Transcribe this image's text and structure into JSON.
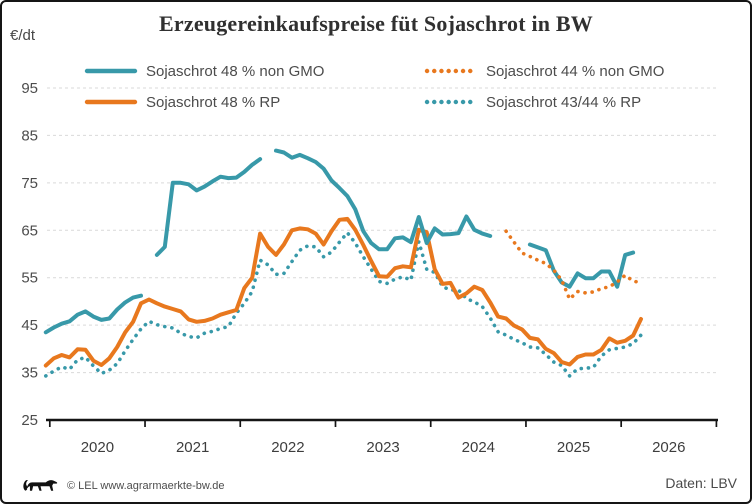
{
  "footer": {
    "copyright": "© LEL www.agrarmaerkte-bw.de",
    "source": "Daten: LBV"
  },
  "chart_data": {
    "type": "line",
    "title": "Erzeugereinkaufspreise füt Sojaschrot in BW",
    "ylabel": "€/dt",
    "xlabel": "",
    "ylim": [
      25,
      97
    ],
    "xlim": [
      2019.9,
      2027
    ],
    "grid": "horizontal-dashed",
    "legend_position": "top",
    "y_ticks": [
      95,
      85,
      75,
      65,
      55,
      45,
      35,
      25
    ],
    "x_tick_years": [
      2020,
      2021,
      2022,
      2023,
      2024,
      2025,
      2026,
      2027
    ],
    "x_labels": [
      "2020",
      "2021",
      "2022",
      "2023",
      "2024",
      "2025",
      "2026"
    ],
    "colors": {
      "teal": "#3899a9",
      "orange": "#e8781e"
    },
    "legend_order": [
      "gmo48",
      "gmo44",
      "rp48",
      "rp4344"
    ],
    "series": [
      {
        "id": "rp4344",
        "name": "Sojaschrot 43/44 % RP",
        "color": "#3899a9",
        "style": "dotted",
        "width": 3.6,
        "points": [
          [
            2019.958,
            34.3
          ],
          [
            2020.042,
            35.3
          ],
          [
            2020.125,
            36.2
          ],
          [
            2020.208,
            35.7
          ],
          [
            2020.292,
            37.7
          ],
          [
            2020.375,
            38.2
          ],
          [
            2020.458,
            36.4
          ],
          [
            2020.542,
            34.8
          ],
          [
            2020.625,
            35.5
          ],
          [
            2020.708,
            36.9
          ],
          [
            2020.792,
            39.6
          ],
          [
            2020.875,
            42
          ],
          [
            2020.958,
            44.2
          ],
          [
            2021.042,
            45.8
          ],
          [
            2021.125,
            45.1
          ],
          [
            2021.208,
            44.7
          ],
          [
            2021.292,
            44.4
          ],
          [
            2021.375,
            43.3
          ],
          [
            2021.458,
            42.6
          ],
          [
            2021.542,
            42.3
          ],
          [
            2021.625,
            43.3
          ],
          [
            2021.708,
            43.7
          ],
          [
            2021.792,
            44.3
          ],
          [
            2021.875,
            44.7
          ],
          [
            2021.958,
            47.5
          ],
          [
            2022.042,
            49.6
          ],
          [
            2022.125,
            52.1
          ],
          [
            2022.208,
            58.7
          ],
          [
            2022.292,
            57.7
          ],
          [
            2022.375,
            55.7
          ],
          [
            2022.458,
            55.9
          ],
          [
            2022.542,
            58.4
          ],
          [
            2022.625,
            60.8
          ],
          [
            2022.708,
            61.7
          ],
          [
            2022.792,
            61.5
          ],
          [
            2022.875,
            59.4
          ],
          [
            2022.958,
            60.4
          ],
          [
            2023.042,
            62.5
          ],
          [
            2023.125,
            64.5
          ],
          [
            2023.208,
            62.3
          ],
          [
            2023.292,
            59.4
          ],
          [
            2023.375,
            56.8
          ],
          [
            2023.458,
            54.2
          ],
          [
            2023.542,
            53.8
          ],
          [
            2023.625,
            54.7
          ],
          [
            2023.708,
            55.2
          ],
          [
            2023.792,
            54.5
          ],
          [
            2023.875,
            62.6
          ],
          [
            2023.958,
            56.8
          ],
          [
            2024.042,
            56.1
          ],
          [
            2024.125,
            53.1
          ],
          [
            2024.208,
            52.4
          ],
          [
            2024.292,
            52.4
          ],
          [
            2024.375,
            50.6
          ],
          [
            2024.458,
            49.9
          ],
          [
            2024.542,
            48.9
          ],
          [
            2024.625,
            46.5
          ],
          [
            2024.708,
            43.6
          ],
          [
            2024.792,
            42.9
          ],
          [
            2024.875,
            42
          ],
          [
            2024.958,
            41.3
          ],
          [
            2025.042,
            40.4
          ],
          [
            2025.125,
            40.2
          ],
          [
            2025.208,
            38.8
          ],
          [
            2025.292,
            37.2
          ],
          [
            2025.375,
            36.5
          ],
          [
            2025.458,
            34.3
          ],
          [
            2025.542,
            35.8
          ],
          [
            2025.625,
            35.9
          ],
          [
            2025.708,
            36.1
          ],
          [
            2025.792,
            38.5
          ],
          [
            2025.875,
            39.8
          ],
          [
            2025.958,
            40.1
          ],
          [
            2026.042,
            40.4
          ],
          [
            2026.125,
            41.1
          ],
          [
            2026.208,
            42.9
          ]
        ]
      },
      {
        "id": "rp48",
        "name": "Sojaschrot 48 % RP",
        "color": "#e8781e",
        "style": "solid",
        "width": 4,
        "points": [
          [
            2019.958,
            36.5
          ],
          [
            2020.042,
            38
          ],
          [
            2020.125,
            38.7
          ],
          [
            2020.208,
            38.2
          ],
          [
            2020.292,
            39.9
          ],
          [
            2020.375,
            39.8
          ],
          [
            2020.458,
            37.5
          ],
          [
            2020.542,
            36.6
          ],
          [
            2020.625,
            38
          ],
          [
            2020.708,
            40.4
          ],
          [
            2020.792,
            43.5
          ],
          [
            2020.875,
            45.7
          ],
          [
            2020.958,
            49.6
          ],
          [
            2021.042,
            50.4
          ],
          [
            2021.125,
            49.6
          ],
          [
            2021.208,
            48.9
          ],
          [
            2021.292,
            48.4
          ],
          [
            2021.375,
            47.9
          ],
          [
            2021.458,
            46.2
          ],
          [
            2021.542,
            45.7
          ],
          [
            2021.625,
            45.9
          ],
          [
            2021.708,
            46.4
          ],
          [
            2021.792,
            47.2
          ],
          [
            2021.875,
            47.7
          ],
          [
            2021.958,
            48.2
          ],
          [
            2022.042,
            52.8
          ],
          [
            2022.125,
            55
          ],
          [
            2022.208,
            64.3
          ],
          [
            2022.292,
            61.5
          ],
          [
            2022.375,
            59.8
          ],
          [
            2022.458,
            62
          ],
          [
            2022.542,
            65
          ],
          [
            2022.625,
            65.4
          ],
          [
            2022.708,
            65.2
          ],
          [
            2022.792,
            64.3
          ],
          [
            2022.875,
            62
          ],
          [
            2022.958,
            64.8
          ],
          [
            2023.042,
            67.2
          ],
          [
            2023.125,
            67.4
          ],
          [
            2023.208,
            65.1
          ],
          [
            2023.292,
            61.9
          ],
          [
            2023.375,
            58.5
          ],
          [
            2023.458,
            55.3
          ],
          [
            2023.542,
            55.2
          ],
          [
            2023.625,
            57
          ],
          [
            2023.708,
            57.4
          ],
          [
            2023.792,
            57.2
          ],
          [
            2023.875,
            65.1
          ],
          [
            2023.958,
            64.6
          ],
          [
            2024.042,
            56.8
          ],
          [
            2024.125,
            53.7
          ],
          [
            2024.208,
            53.9
          ],
          [
            2024.292,
            50.8
          ],
          [
            2024.375,
            51.7
          ],
          [
            2024.458,
            53.1
          ],
          [
            2024.542,
            52.4
          ],
          [
            2024.625,
            49.8
          ],
          [
            2024.708,
            46.8
          ],
          [
            2024.792,
            46.4
          ],
          [
            2024.875,
            44.9
          ],
          [
            2024.958,
            44.1
          ],
          [
            2025.042,
            42.3
          ],
          [
            2025.125,
            42
          ],
          [
            2025.208,
            40
          ],
          [
            2025.292,
            39.1
          ],
          [
            2025.375,
            37.2
          ],
          [
            2025.458,
            36.7
          ],
          [
            2025.542,
            38.3
          ],
          [
            2025.625,
            38.8
          ],
          [
            2025.708,
            38.8
          ],
          [
            2025.792,
            39.8
          ],
          [
            2025.875,
            42.2
          ],
          [
            2025.958,
            41.3
          ],
          [
            2026.042,
            41.7
          ],
          [
            2026.125,
            42.8
          ],
          [
            2026.208,
            46.3
          ]
        ]
      },
      {
        "id": "gmo48",
        "name": "Sojaschrot 48 % non GMO",
        "color": "#3899a9",
        "style": "solid",
        "width": 4,
        "points": [
          [
            2019.958,
            43.5
          ],
          [
            2020.042,
            44.5
          ],
          [
            2020.125,
            45.3
          ],
          [
            2020.208,
            45.8
          ],
          [
            2020.292,
            47.2
          ],
          [
            2020.375,
            47.9
          ],
          [
            2020.458,
            46.8
          ],
          [
            2020.542,
            46.1
          ],
          [
            2020.625,
            46.4
          ],
          [
            2020.708,
            48.3
          ],
          [
            2020.792,
            49.8
          ],
          [
            2020.875,
            50.8
          ],
          [
            2020.958,
            51.2
          ],
          null,
          [
            2021.125,
            59.8
          ],
          [
            2021.208,
            61.5
          ],
          [
            2021.292,
            75
          ],
          [
            2021.375,
            75
          ],
          [
            2021.458,
            74.7
          ],
          [
            2021.542,
            73.4
          ],
          [
            2021.625,
            74.2
          ],
          [
            2021.708,
            75.3
          ],
          [
            2021.792,
            76.3
          ],
          [
            2021.875,
            76
          ],
          [
            2021.958,
            76.1
          ],
          [
            2022.042,
            77.3
          ],
          [
            2022.125,
            78.8
          ],
          [
            2022.208,
            80
          ],
          null,
          [
            2022.375,
            81.8
          ],
          [
            2022.458,
            81.4
          ],
          [
            2022.542,
            80.3
          ],
          [
            2022.625,
            80.9
          ],
          [
            2022.708,
            80.2
          ],
          [
            2022.792,
            79.4
          ],
          [
            2022.875,
            78
          ],
          [
            2022.958,
            75.5
          ],
          [
            2023.042,
            73.9
          ],
          [
            2023.125,
            72.2
          ],
          [
            2023.208,
            69.4
          ],
          [
            2023.292,
            64.8
          ],
          [
            2023.375,
            62.3
          ],
          [
            2023.458,
            61
          ],
          [
            2023.542,
            61
          ],
          [
            2023.625,
            63.3
          ],
          [
            2023.708,
            63.5
          ],
          [
            2023.792,
            62.5
          ],
          [
            2023.875,
            67.8
          ],
          [
            2023.958,
            62.3
          ],
          [
            2024.042,
            65.4
          ],
          [
            2024.125,
            64.1
          ],
          [
            2024.208,
            64.2
          ],
          [
            2024.292,
            64.4
          ],
          [
            2024.375,
            67.9
          ],
          [
            2024.458,
            65.1
          ],
          [
            2024.542,
            64.3
          ],
          [
            2024.625,
            63.8
          ],
          null,
          [
            2025.042,
            62
          ],
          [
            2025.125,
            61.4
          ],
          [
            2025.208,
            60.8
          ],
          [
            2025.292,
            56.5
          ],
          [
            2025.375,
            54
          ],
          [
            2025.458,
            53.1
          ],
          [
            2025.542,
            55.9
          ],
          [
            2025.625,
            54.9
          ],
          [
            2025.708,
            54.9
          ],
          [
            2025.792,
            56.3
          ],
          [
            2025.875,
            56.3
          ],
          [
            2025.958,
            53.1
          ],
          [
            2026.042,
            59.8
          ],
          [
            2026.125,
            60.3
          ]
        ]
      },
      {
        "id": "gmo44",
        "name": "Sojaschrot 44 % non GMO",
        "color": "#e8781e",
        "style": "dotted",
        "width": 3.6,
        "points": [
          [
            2024.792,
            64.8
          ],
          [
            2024.875,
            62.5
          ],
          [
            2024.958,
            60.2
          ],
          [
            2025.042,
            59.5
          ],
          [
            2025.125,
            58.7
          ],
          [
            2025.208,
            58
          ],
          [
            2025.292,
            56.6
          ],
          [
            2025.375,
            54.5
          ],
          [
            2025.458,
            50.5
          ],
          [
            2025.542,
            52.1
          ],
          [
            2025.625,
            51.8
          ],
          [
            2025.708,
            52
          ],
          [
            2025.792,
            52.7
          ],
          [
            2025.875,
            53.1
          ],
          [
            2025.958,
            54.1
          ],
          [
            2026.042,
            55.5
          ],
          [
            2026.125,
            54.3
          ],
          [
            2026.208,
            53.9
          ]
        ]
      }
    ]
  }
}
